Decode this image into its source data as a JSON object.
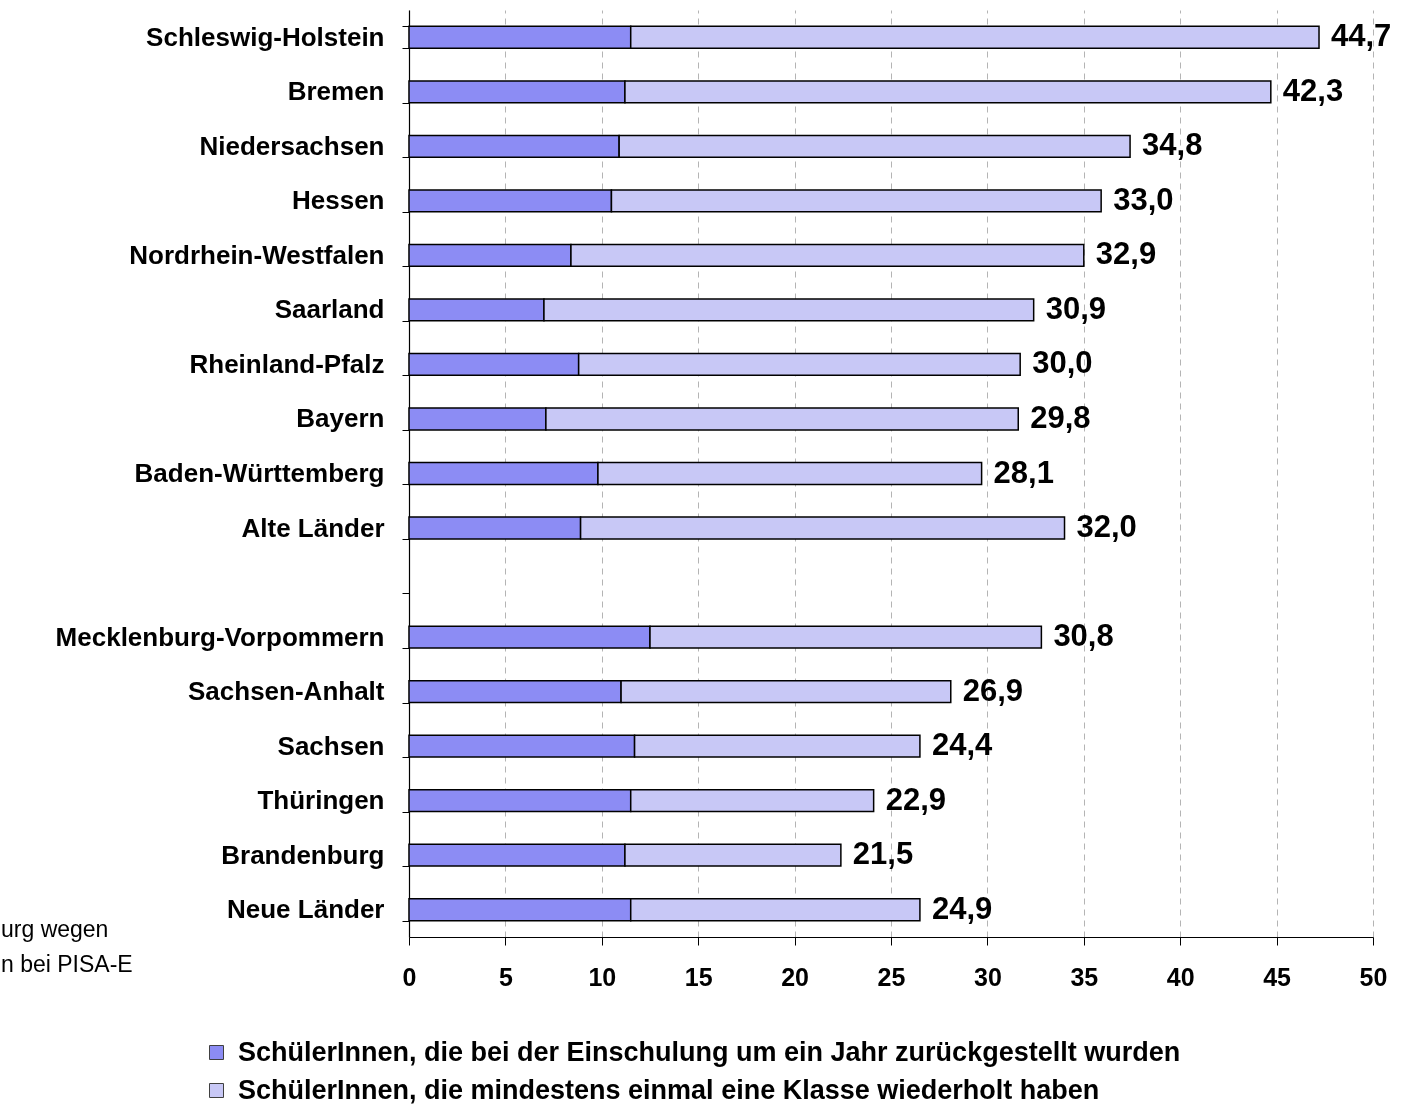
{
  "chart_data": {
    "type": "bar",
    "orientation": "horizontal",
    "stacked": true,
    "categories": [
      "Schleswig-Holstein",
      "Bremen",
      "Niedersachsen",
      "Hessen",
      "Nordrhein-Westfalen",
      "Saarland",
      "Rheinland-Pfalz",
      "Bayern",
      "Baden-Württemberg",
      "Alte Länder",
      null,
      "Mecklenburg-Vorpommern",
      "Sachsen-Anhalt",
      "Sachsen",
      "Thüringen",
      "Brandenburg",
      "Neue Länder"
    ],
    "series": [
      {
        "name": "SchülerInnen, die bei der Einschulung um ein Jahr zurückgestellt wurden",
        "color": "#8c8cf4",
        "values": [
          11.5,
          11.2,
          10.9,
          10.5,
          8.4,
          7.0,
          8.8,
          7.1,
          9.8,
          8.9,
          null,
          12.5,
          11.0,
          11.7,
          11.5,
          11.2,
          11.5
        ]
      },
      {
        "name": "SchülerInnen, die mindestens einmal eine Klasse wiederholt haben",
        "color": "#c8c8f6",
        "values": [
          35.7,
          33.5,
          26.5,
          25.4,
          26.6,
          25.4,
          22.9,
          24.5,
          19.9,
          25.1,
          null,
          20.3,
          17.1,
          14.8,
          12.6,
          11.2,
          15.0
        ]
      }
    ],
    "xlim": [
      0,
      50
    ],
    "xticks": [
      0,
      5,
      10,
      15,
      20,
      25,
      30,
      35,
      40,
      45,
      50
    ],
    "grid": "x",
    "legend": "bottom",
    "annotations": [
      {
        "text": "44,7",
        "x": 47.2,
        "y": "Schleswig-Holstein"
      },
      {
        "text": "42,3",
        "x": 44.7,
        "y": "Bremen"
      },
      {
        "text": "34,8",
        "x": 37.4,
        "y": "Niedersachsen"
      },
      {
        "text": "33,0",
        "x": 35.9,
        "y": "Hessen"
      },
      {
        "text": "32,9",
        "x": 35.0,
        "y": "Nordrhein-Westfalen"
      },
      {
        "text": "30,9",
        "x": 32.4,
        "y": "Saarland"
      },
      {
        "text": "30,0",
        "x": 31.7,
        "y": "Rheinland-Pfalz"
      },
      {
        "text": "29,8",
        "x": 31.6,
        "y": "Bayern"
      },
      {
        "text": "28,1",
        "x": 29.7,
        "y": "Baden-Württemberg"
      },
      {
        "text": "32,0",
        "x": 34.0,
        "y": "Alte Länder"
      },
      {
        "text": "30,8",
        "x": 32.8,
        "y": "Mecklenburg-Vorpommern"
      },
      {
        "text": "26,9",
        "x": 28.1,
        "y": "Sachsen-Anhalt"
      },
      {
        "text": "24,4",
        "x": 26.5,
        "y": "Sachsen"
      },
      {
        "text": "22,9",
        "x": 24.1,
        "y": "Thüringen"
      },
      {
        "text": "21,5",
        "x": 22.4,
        "y": "Brandenburg"
      },
      {
        "text": "24,9",
        "x": 26.5,
        "y": "Neue Länder"
      },
      "urg wegen\nn bei PISA-E"
    ]
  }
}
